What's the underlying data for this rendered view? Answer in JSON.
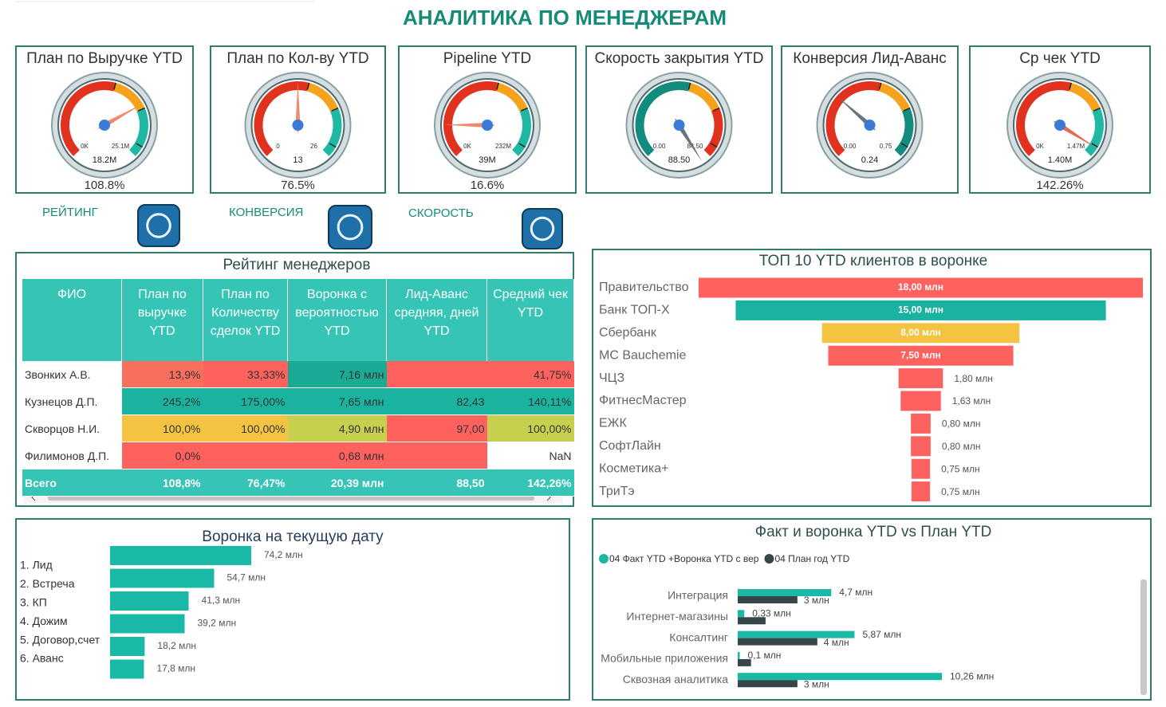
{
  "title": "АНАЛИТИКА ПО МЕНЕДЖЕРАМ",
  "gauges": [
    {
      "title": "План по Выручке YTD",
      "min": {
        "value": 0,
        "label": "0K"
      },
      "max": {
        "value": 25.1,
        "label": "25.1M"
      },
      "value": {
        "value": 18.2,
        "label": "18.2M"
      },
      "percent": "108.8%",
      "colors": [
        "#e0321e",
        "#f5a31c",
        "#1fb8a5"
      ],
      "needle_color": "#ef8a6c"
    },
    {
      "title": "План по Кол-ву YTD",
      "min": 0,
      "max": 26,
      "value": 13,
      "percent": "76.5%",
      "colors": [
        "#e0321e",
        "#f5a31c",
        "#1fb8a5"
      ],
      "needle_color": "#ef8a6c"
    },
    {
      "title": "Pipeline YTD",
      "min": {
        "value": 0,
        "label": "0K"
      },
      "max": {
        "value": 232,
        "label": "232M"
      },
      "value": {
        "value": 39,
        "label": "39M"
      },
      "percent": "16.6%",
      "colors": [
        "#e0321e",
        "#f5a31c",
        "#1fb8a5"
      ],
      "needle_color": "#ef8a6c"
    },
    {
      "title": "Скорость закрытия YTD",
      "min": {
        "value": 0,
        "label": "0.00"
      },
      "max": {
        "value": 84.5,
        "label": "84.50"
      },
      "value": {
        "value": 88.5,
        "label": "88.50"
      },
      "colors": [
        "#118c7e",
        "#f5a31c",
        "#e0321e"
      ],
      "needle_color": "#66767a"
    },
    {
      "title": "Конверсия Лид-Аванс",
      "min": {
        "value": 0,
        "label": "0.00"
      },
      "max": {
        "value": 0.75,
        "label": "0.75"
      },
      "value": 0.24,
      "colors": [
        "#e0321e",
        "#f5a31c",
        "#118c7e"
      ],
      "needle_color": "#66767a"
    },
    {
      "title": "Ср чек YTD",
      "min": {
        "value": 0,
        "label": "0K"
      },
      "max": {
        "value": 1.47,
        "label": "1.47M"
      },
      "value": {
        "value": 1.4,
        "label": "1.40M"
      },
      "percent": "142.26%",
      "colors": [
        "#e0321e",
        "#f5a31c",
        "#1fb8a5"
      ],
      "needle_color": "#e46a55"
    }
  ],
  "buttons": [
    "РЕЙТИНГ",
    "КОНВЕРСИЯ",
    "СКОРОСТЬ"
  ],
  "table": {
    "title": "Рейтинг менеджеров",
    "header": [
      "ФИО",
      "План по выручке YTD",
      "План по Количеству сделок YTD",
      "Воронка с вероятностью YTD",
      "Лид-Аванс средняя, дней YTD",
      "Средний чек YTD"
    ],
    "rows": [
      {
        "cells": [
          "Звонких А.В.",
          "13,9%",
          "33,33%",
          "7,16 млн",
          null,
          "41,75%"
        ],
        "colors": [
          "#ffffff",
          "#f8705d",
          "#fd625e",
          "#1aab95",
          "#fd625e",
          "#fd625e"
        ]
      },
      {
        "cells": [
          "Кузнецов Д.П.",
          "245,2%",
          "175,00%",
          "7,65 млн",
          "82,43",
          "140,11%"
        ],
        "colors": [
          "#ffffff",
          "#1ab3a0",
          "#1ab3a0",
          "#1ab3a0",
          "#1ab3a0",
          "#1ab3a0"
        ]
      },
      {
        "cells": [
          "Скворцов Н.И.",
          "100,0%",
          "100,00%",
          "4,90 млн",
          "97,00",
          "100,00%"
        ],
        "colors": [
          "#ffffff",
          "#f5c342",
          "#f5c342",
          "#c7cf4e",
          "#fd625e",
          "#c7cf4e"
        ]
      },
      {
        "cells": [
          "Филимонов Д.П.",
          "0,0%",
          null,
          "0,68 млн",
          null,
          "NaN"
        ],
        "colors": [
          "#ffffff",
          "#fd625e",
          "#fd625e",
          "#fd625e",
          "#fd625e",
          "#ffffff"
        ]
      }
    ],
    "total": {
      "cells": [
        "Всего",
        "108,8%",
        "76,47%",
        "20,39 млн",
        "88,50",
        "142,26%"
      ],
      "color": "#35c4b5"
    }
  },
  "chart_data": [
    {
      "type": "funnel",
      "title": "ТОП 10 YTD клиентов в воронке",
      "categories": [
        "Правительство",
        "Банк ТОП-Х",
        "Сбербанк",
        "MC Bauchemie",
        "ЧЦЗ",
        "ФитнесМастер",
        "ЕЖК",
        "СофтЛайн",
        "Косметика+",
        "ТриТэ"
      ],
      "values": [
        18,
        15,
        8,
        7.5,
        1.8,
        1.63,
        0.8,
        0.8,
        0.75,
        0.75
      ],
      "value_labels": [
        "18,00 млн",
        "15,00 млн",
        "8,00 млн",
        "7,50 млн",
        "1,80 млн",
        "1,63 млн",
        "0,80 млн",
        "0,80 млн",
        "0,75 млн",
        "0,75 млн"
      ],
      "colors": [
        "#fd625e",
        "#1ab3a0",
        "#f5c342",
        "#fd625e",
        "#fd625e",
        "#fd625e",
        "#fd625e",
        "#fd625e",
        "#fd625e",
        "#fd625e"
      ]
    },
    {
      "type": "hbar",
      "title": "Воронка на текущую дату",
      "categories": [
        "1. Лид",
        "2. Встреча",
        "3. КП",
        "4. Дожим",
        "5. Договор,счет",
        "6. Аванс"
      ],
      "values": [
        74.2,
        54.7,
        41.3,
        39.2,
        18.2,
        17.8
      ],
      "value_labels": [
        "74,2 млн",
        "54,7 млн",
        "41,3 млн",
        "39,2 млн",
        "18,2 млн",
        "17,8 млн"
      ],
      "color": "#1ab8a6"
    },
    {
      "type": "grouped-hbar",
      "title": "Факт и воронка YTD vs План YTD",
      "categories": [
        "Интеграция",
        "Интернет-магазины",
        "Консалтинг",
        "Мобильные приложения",
        "Сквозная аналитика"
      ],
      "series": [
        {
          "name": "04 Факт YTD +Воронка YTD с вер",
          "color": "#1ab8a6",
          "values": [
            4.7,
            0.33,
            5.87,
            0.1,
            10.26
          ],
          "value_labels": [
            "4,7 млн",
            "0,33 млн",
            "5,87 млн",
            "0,1 млн",
            "10,26 млн"
          ]
        },
        {
          "name": "04 План год YTD",
          "color": "#374649",
          "values": [
            3,
            1.4,
            4,
            0.67,
            3
          ],
          "value_labels": [
            "3 млн",
            null,
            "4 млн",
            null,
            "3 млн"
          ]
        }
      ]
    }
  ]
}
